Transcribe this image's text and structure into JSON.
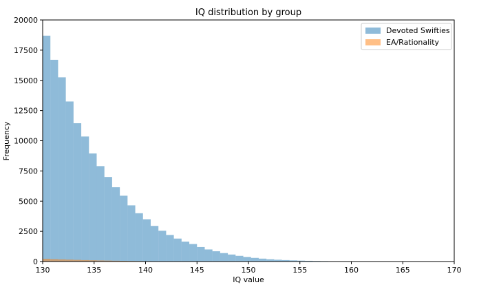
{
  "chart_data": {
    "type": "bar",
    "title": "IQ distribution by group",
    "xlabel": "IQ value",
    "ylabel": "Frequency",
    "xlim": [
      130,
      170
    ],
    "ylim": [
      0,
      20000
    ],
    "xticks": [
      130,
      135,
      140,
      145,
      150,
      155,
      160,
      165,
      170
    ],
    "yticks": [
      0,
      2500,
      5000,
      7500,
      10000,
      12500,
      15000,
      17500,
      20000
    ],
    "bin_width": 0.75,
    "legend_position": "top-right",
    "grid": false,
    "series": [
      {
        "name": "Devoted Swifties",
        "color": "#1f77b4",
        "alpha": 0.5,
        "bin_start": 130,
        "values": [
          18700,
          16700,
          15250,
          13250,
          11450,
          10350,
          8950,
          7900,
          7000,
          6150,
          5450,
          4650,
          4000,
          3500,
          2950,
          2550,
          2200,
          1900,
          1650,
          1450,
          1200,
          1000,
          850,
          700,
          580,
          470,
          380,
          300,
          240,
          190,
          150,
          120,
          95,
          75,
          60,
          45,
          35,
          25,
          18,
          12,
          8
        ]
      },
      {
        "name": "EA/Rationality",
        "color": "#ff7f0e",
        "alpha": 0.5,
        "bin_start": 130,
        "values": [
          230,
          200,
          180,
          160,
          140,
          120,
          105,
          90,
          78,
          66,
          56,
          47,
          40,
          33,
          27,
          22,
          18,
          15,
          12,
          10,
          8,
          6,
          5,
          4,
          3,
          2,
          2,
          1,
          1
        ]
      }
    ]
  }
}
